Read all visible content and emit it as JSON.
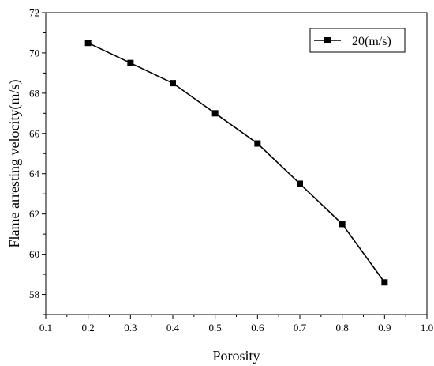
{
  "chart_data": {
    "type": "line",
    "xlabel": "Porosity",
    "ylabel": "Flame arresting velocity(m/s)",
    "xlim": [
      0.1,
      1.0
    ],
    "ylim": [
      57,
      72
    ],
    "xticks": [
      0.1,
      0.2,
      0.3,
      0.4,
      0.5,
      0.6,
      0.7,
      0.8,
      0.9,
      1.0
    ],
    "xtick_labels": [
      "0.1",
      "0.2",
      "0.3",
      "0.4",
      "0.5",
      "0.6",
      "0.7",
      "0.8",
      "0.9",
      "1.0"
    ],
    "yticks": [
      58,
      60,
      62,
      64,
      66,
      68,
      70,
      72
    ],
    "ytick_labels": [
      "58",
      "60",
      "62",
      "64",
      "66",
      "68",
      "70",
      "72"
    ],
    "grid": false,
    "legend_position": "top-right",
    "series": [
      {
        "name": "20(m/s)",
        "marker": "square",
        "color": "#000000",
        "x": [
          0.2,
          0.3,
          0.4,
          0.5,
          0.6,
          0.7,
          0.8,
          0.9
        ],
        "y": [
          70.5,
          69.5,
          68.5,
          67.0,
          65.5,
          63.5,
          61.5,
          58.6
        ]
      }
    ]
  }
}
